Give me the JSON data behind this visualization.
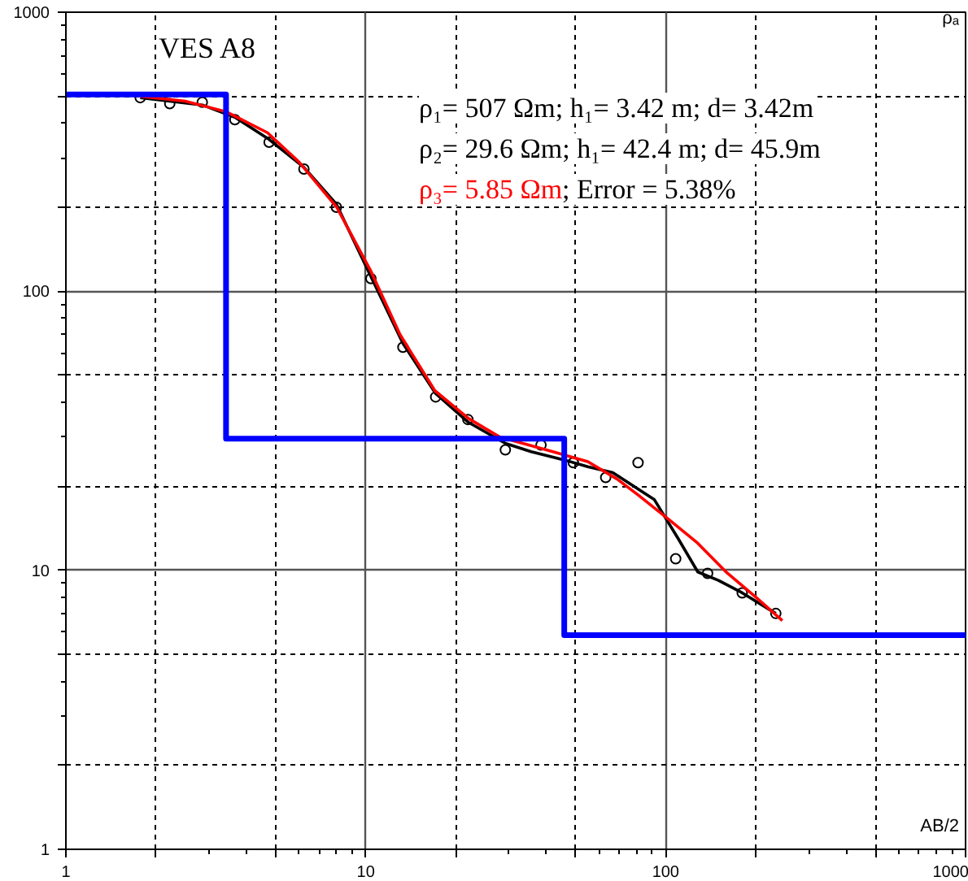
{
  "chart_data": {
    "type": "line",
    "title": "VES A8",
    "xlabel": "AB/2",
    "ylabel": "ρₐ",
    "annotations": [
      "ρ₁= 507 Ωm; h₁= 3.42 m; d= 3.42m",
      "ρ₂= 29.6 Ωm; h₁= 42.4 m; d= 45.9m",
      "ρ₃= 5.85 Ωm",
      "; Error = 5.38%"
    ],
    "log": "xy",
    "xlim": [
      1,
      1000
    ],
    "ylim": [
      1,
      1000
    ],
    "xticks": [
      1,
      {
        "value": 2,
        "label": null
      },
      {
        "value": 5,
        "label": null
      },
      10,
      {
        "value": 20,
        "label": null
      },
      {
        "value": 50,
        "label": null
      },
      100,
      {
        "value": 200,
        "label": null
      },
      {
        "value": 500,
        "label": null
      },
      1000
    ],
    "yticks": [
      1,
      {
        "value": 2,
        "label": null
      },
      {
        "value": 5,
        "label": null
      },
      10,
      {
        "value": 20,
        "label": null
      },
      {
        "value": 50,
        "label": null
      },
      100,
      {
        "value": 200,
        "label": null
      },
      {
        "value": 500,
        "label": null
      },
      1000
    ],
    "grid": true,
    "series": [
      {
        "type": "scatter",
        "marker": "circle",
        "color": "#000000",
        "x": [
          1.77,
          2.22,
          2.85,
          3.66,
          4.76,
          6.22,
          7.98,
          10.4,
          13.3,
          17.1,
          21.9,
          29.2,
          38.4,
          49.2,
          63.1,
          80.9,
          108,
          138,
          180,
          233
        ],
        "values": [
          494,
          470,
          476,
          412,
          342,
          274,
          200,
          111,
          63,
          41.8,
          34.7,
          27.0,
          28.1,
          24.3,
          21.5,
          24.3,
          11.0,
          9.75,
          8.3,
          7.0
        ]
      },
      {
        "color": "#000000",
        "x": [
          1.77,
          2.22,
          2.85,
          3.66,
          4.76,
          6.22,
          7.98,
          10.4,
          13.3,
          17.1,
          21.9,
          29.2,
          35.6,
          45.6,
          55,
          66.6,
          91.7,
          110,
          128,
          150,
          180,
          233
        ],
        "values": [
          494,
          480,
          465,
          420,
          350,
          278,
          205,
          113,
          65,
          43,
          34,
          28.5,
          26.6,
          24.9,
          23.5,
          22.4,
          17.9,
          13,
          9.86,
          9.2,
          8.3,
          7.0
        ]
      },
      {
        "color": "#ff0000",
        "x": [
          1.77,
          2.5,
          3.42,
          4.7,
          6,
          8,
          10.4,
          13,
          17,
          22,
          28,
          40,
          55,
          69,
          81,
          104,
          128,
          160,
          200,
          245
        ],
        "values": [
          500,
          480,
          440,
          370,
          290,
          200,
          118,
          70,
          44,
          35,
          30,
          27,
          24.5,
          21.2,
          18.6,
          15,
          12.5,
          9.8,
          8,
          6.6
        ]
      },
      {
        "color": "#0000ff",
        "x": [
          1,
          3.42,
          3.42,
          45.9,
          45.9,
          1000
        ],
        "values": [
          507,
          507,
          29.6,
          29.6,
          5.85,
          5.85
        ]
      }
    ]
  }
}
